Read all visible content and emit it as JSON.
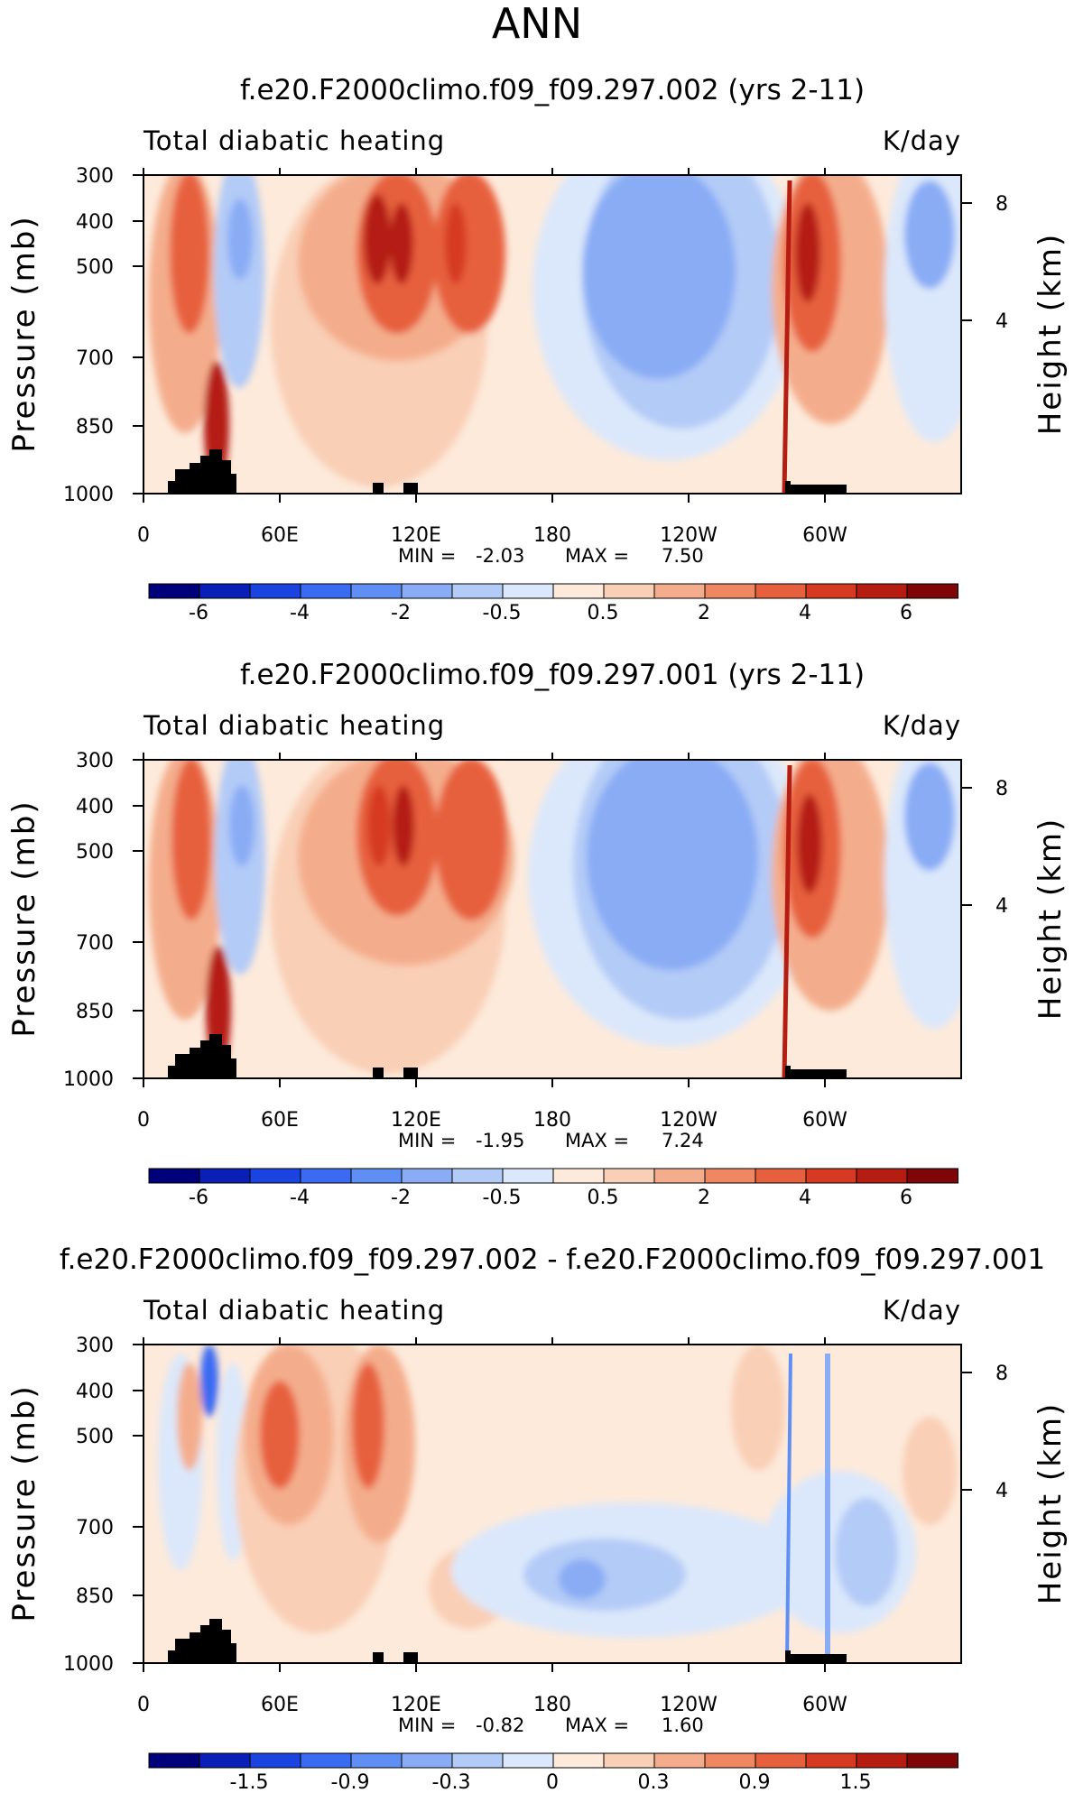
{
  "figure": {
    "season": "ANN"
  },
  "chart_data": [
    {
      "type": "heatmap",
      "title": "f.e20.F2000climo.f09_f09.297.002 (yrs 2-11)",
      "left_label": "Total diabatic heating",
      "right_label": "K/day",
      "ylabel": "Pressure (mb)",
      "y2label": "Height (km)",
      "x_ticks": [
        "0",
        "60E",
        "120E",
        "180",
        "120W",
        "60W"
      ],
      "y_ticks": [
        "300",
        "400",
        "500",
        "700",
        "850",
        "1000"
      ],
      "y2_ticks": [
        "8",
        "4"
      ],
      "min_label": "MIN =",
      "min_value": "-2.03",
      "max_label": "MAX =",
      "max_value": "7.50",
      "colorbar_labels": [
        "-6",
        "-4",
        "-2",
        "-0.5",
        "0.5",
        "2",
        "4",
        "6"
      ],
      "colorbar_colors": [
        "#00007a",
        "#0a1fb5",
        "#1a43e0",
        "#3a6bf2",
        "#5f8ef4",
        "#89acf5",
        "#b3cbf7",
        "#dbe8fb",
        "#fdeadb",
        "#f9cfb6",
        "#f4ad8c",
        "#ef8762",
        "#e7603e",
        "#d63a23",
        "#b51c12",
        "#7e0606"
      ],
      "ylim": [
        300,
        1000
      ],
      "xlim": [
        0,
        360
      ]
    },
    {
      "type": "heatmap",
      "title": "f.e20.F2000climo.f09_f09.297.001 (yrs 2-11)",
      "left_label": "Total diabatic heating",
      "right_label": "K/day",
      "ylabel": "Pressure (mb)",
      "y2label": "Height (km)",
      "x_ticks": [
        "0",
        "60E",
        "120E",
        "180",
        "120W",
        "60W"
      ],
      "y_ticks": [
        "300",
        "400",
        "500",
        "700",
        "850",
        "1000"
      ],
      "y2_ticks": [
        "8",
        "4"
      ],
      "min_label": "MIN =",
      "min_value": "-1.95",
      "max_label": "MAX =",
      "max_value": "7.24",
      "colorbar_labels": [
        "-6",
        "-4",
        "-2",
        "-0.5",
        "0.5",
        "2",
        "4",
        "6"
      ],
      "colorbar_colors": [
        "#00007a",
        "#0a1fb5",
        "#1a43e0",
        "#3a6bf2",
        "#5f8ef4",
        "#89acf5",
        "#b3cbf7",
        "#dbe8fb",
        "#fdeadb",
        "#f9cfb6",
        "#f4ad8c",
        "#ef8762",
        "#e7603e",
        "#d63a23",
        "#b51c12",
        "#7e0606"
      ],
      "ylim": [
        300,
        1000
      ],
      "xlim": [
        0,
        360
      ]
    },
    {
      "type": "heatmap",
      "title": "f.e20.F2000climo.f09_f09.297.002 - f.e20.F2000climo.f09_f09.297.001",
      "left_label": "Total diabatic heating",
      "right_label": "K/day",
      "ylabel": "Pressure (mb)",
      "y2label": "Height (km)",
      "x_ticks": [
        "0",
        "60E",
        "120E",
        "180",
        "120W",
        "60W"
      ],
      "y_ticks": [
        "300",
        "400",
        "500",
        "700",
        "850",
        "1000"
      ],
      "y2_ticks": [
        "8",
        "4"
      ],
      "min_label": "MIN =",
      "min_value": "-0.82",
      "max_label": "MAX =",
      "max_value": "1.60",
      "colorbar_labels": [
        "-1.5",
        "-0.9",
        "-0.3",
        "0",
        "0.3",
        "0.9",
        "1.5"
      ],
      "colorbar_colors": [
        "#00007a",
        "#0a1fb5",
        "#1a43e0",
        "#3a6bf2",
        "#5f8ef4",
        "#89acf5",
        "#b3cbf7",
        "#dbe8fb",
        "#fdeadb",
        "#f9cfb6",
        "#f4ad8c",
        "#ef8762",
        "#e7603e",
        "#d63a23",
        "#b51c12",
        "#7e0606"
      ],
      "ylim": [
        300,
        1000
      ],
      "xlim": [
        0,
        360
      ]
    }
  ]
}
